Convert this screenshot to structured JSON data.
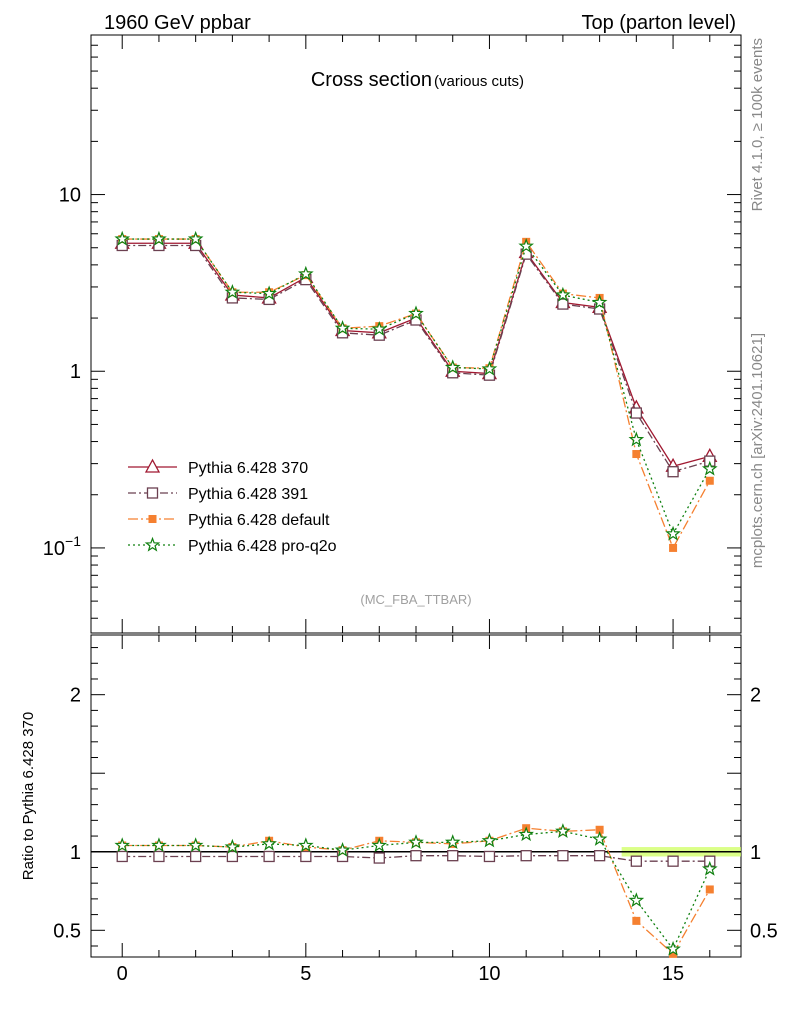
{
  "header": {
    "left": "1960 GeV ppbar",
    "right": "Top (parton level)"
  },
  "side": {
    "rivet": "Rivet 4.1.0, ≥ 100k events",
    "mcplots": "mcplots.cern.ch [arXiv:2401.10621]"
  },
  "colors": {
    "p370": "#a01830",
    "p391": "#6b4050",
    "pdef": "#f58030",
    "pq2o": "#108010",
    "band": "#ccff55"
  },
  "chart_data": [
    {
      "type": "line",
      "title": "Cross section",
      "subtitle": "(various cuts)",
      "watermark": "(MC_FBA_TTBAR)",
      "yscale": "log",
      "ylim": [
        0.033,
        80
      ],
      "xlim": [
        -0.85,
        16.85
      ],
      "yticks": [
        {
          "v": 0.1,
          "base": "10",
          "exp": "−1"
        },
        {
          "v": 1,
          "label": "1"
        },
        {
          "v": 10,
          "label": "10"
        }
      ],
      "x": [
        0,
        1,
        2,
        3,
        4,
        5,
        6,
        7,
        8,
        9,
        10,
        11,
        12,
        13,
        14,
        15,
        16
      ],
      "series": [
        {
          "name": "Pythia 6.428 370",
          "color": "#a01830",
          "marker": "triangle",
          "dash": "",
          "values": [
            5.3,
            5.3,
            5.3,
            2.7,
            2.6,
            3.4,
            1.7,
            1.65,
            2.0,
            1.0,
            0.97,
            4.7,
            2.45,
            2.3,
            0.62,
            0.29,
            0.33
          ]
        },
        {
          "name": "Pythia 6.428 391",
          "color": "#6b4050",
          "marker": "square-open",
          "dash": "8,3,2,3",
          "values": [
            5.15,
            5.15,
            5.15,
            2.6,
            2.55,
            3.3,
            1.65,
            1.6,
            1.95,
            0.98,
            0.95,
            4.6,
            2.4,
            2.25,
            0.58,
            0.27,
            0.31
          ]
        },
        {
          "name": "Pythia 6.428 default",
          "color": "#f58030",
          "marker": "square-filled",
          "dash": "10,3,2,3",
          "values": [
            5.6,
            5.6,
            5.6,
            2.8,
            2.8,
            3.5,
            1.75,
            1.8,
            2.12,
            1.05,
            1.04,
            5.4,
            2.75,
            2.6,
            0.34,
            0.1,
            0.24
          ]
        },
        {
          "name": "Pythia 6.428 pro-q2o",
          "color": "#108010",
          "marker": "star",
          "dash": "2,3",
          "values": [
            5.6,
            5.6,
            5.6,
            2.8,
            2.75,
            3.55,
            1.75,
            1.73,
            2.12,
            1.05,
            1.03,
            5.1,
            2.7,
            2.45,
            0.41,
            0.12,
            0.28
          ]
        }
      ]
    },
    {
      "type": "line",
      "ylabel": "Ratio to Pythia 6.428 370",
      "ylim": [
        0.33,
        2.38
      ],
      "xlim": [
        -0.85,
        16.85
      ],
      "yticks": [
        {
          "v": 0.5,
          "label": "0.5"
        },
        {
          "v": 1,
          "label": "1"
        },
        {
          "v": 2,
          "label": "2"
        }
      ],
      "xticks": [
        {
          "v": 0,
          "label": "0"
        },
        {
          "v": 5,
          "label": "5"
        },
        {
          "v": 10,
          "label": "10"
        },
        {
          "v": 15,
          "label": "15"
        }
      ],
      "x": [
        0,
        1,
        2,
        3,
        4,
        5,
        6,
        7,
        8,
        9,
        10,
        11,
        12,
        13,
        14,
        15,
        16
      ],
      "series": [
        {
          "name": "Pythia 6.428 370",
          "color": "#a01830",
          "values": [
            1,
            1,
            1,
            1,
            1,
            1,
            1,
            1,
            1,
            1,
            1,
            1,
            1,
            1,
            1,
            1,
            1
          ]
        },
        {
          "name": "Pythia 6.428 391",
          "color": "#6b4050",
          "values": [
            0.97,
            0.97,
            0.97,
            0.97,
            0.97,
            0.97,
            0.97,
            0.96,
            0.975,
            0.975,
            0.97,
            0.975,
            0.975,
            0.975,
            0.94,
            0.94,
            0.94
          ]
        },
        {
          "name": "Pythia 6.428 default",
          "color": "#f58030",
          "values": [
            1.04,
            1.04,
            1.04,
            1.03,
            1.07,
            1.03,
            1.01,
            1.07,
            1.06,
            1.05,
            1.07,
            1.15,
            1.13,
            1.14,
            0.56,
            0.35,
            0.76
          ]
        },
        {
          "name": "Pythia 6.428 pro-q2o",
          "color": "#108010",
          "values": [
            1.04,
            1.04,
            1.04,
            1.03,
            1.05,
            1.04,
            1.01,
            1.04,
            1.06,
            1.06,
            1.07,
            1.11,
            1.13,
            1.08,
            0.69,
            0.38,
            0.89
          ]
        }
      ]
    }
  ]
}
